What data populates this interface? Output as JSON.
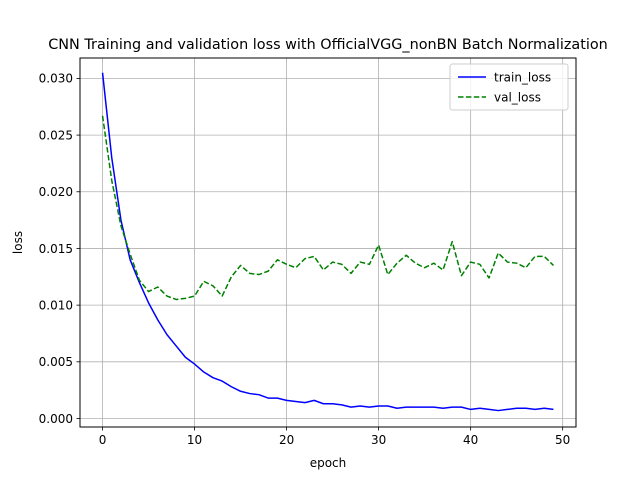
{
  "chart_data": {
    "type": "line",
    "title": "CNN Training and validation loss with OfficialVGG_nonBN Batch Normalization",
    "xlabel": "epoch",
    "ylabel": "loss",
    "xlim": [
      -2.45,
      51.45
    ],
    "ylim": [
      -0.00075,
      0.0318
    ],
    "xticks": [
      0,
      10,
      20,
      30,
      40,
      50
    ],
    "xtick_labels": [
      "0",
      "10",
      "20",
      "30",
      "40",
      "50"
    ],
    "yticks": [
      0.0,
      0.005,
      0.01,
      0.015,
      0.02,
      0.025,
      0.03
    ],
    "ytick_labels": [
      "0.000",
      "0.005",
      "0.010",
      "0.015",
      "0.020",
      "0.025",
      "0.030"
    ],
    "grid": true,
    "legend_position": "upper right",
    "x": [
      0,
      1,
      2,
      3,
      4,
      5,
      6,
      7,
      8,
      9,
      10,
      11,
      12,
      13,
      14,
      15,
      16,
      17,
      18,
      19,
      20,
      21,
      22,
      23,
      24,
      25,
      26,
      27,
      28,
      29,
      30,
      31,
      32,
      33,
      34,
      35,
      36,
      37,
      38,
      39,
      40,
      41,
      42,
      43,
      44,
      45,
      46,
      47,
      48,
      49
    ],
    "series": [
      {
        "name": "train_loss",
        "color": "#0000ff",
        "dash": "solid",
        "values": [
          0.0305,
          0.023,
          0.0175,
          0.014,
          0.012,
          0.0102,
          0.0087,
          0.0074,
          0.0064,
          0.0054,
          0.0048,
          0.0041,
          0.0036,
          0.0033,
          0.0028,
          0.0024,
          0.0022,
          0.0021,
          0.0018,
          0.0018,
          0.0016,
          0.0015,
          0.0014,
          0.0016,
          0.0013,
          0.0013,
          0.0012,
          0.001,
          0.0011,
          0.001,
          0.0011,
          0.0011,
          0.0009,
          0.001,
          0.001,
          0.001,
          0.001,
          0.0009,
          0.001,
          0.001,
          0.0008,
          0.0009,
          0.0008,
          0.0007,
          0.0008,
          0.0009,
          0.0009,
          0.0008,
          0.0009,
          0.0008
        ]
      },
      {
        "name": "val_loss",
        "color": "#008000",
        "dash": "dashed",
        "values": [
          0.0267,
          0.021,
          0.017,
          0.0145,
          0.0122,
          0.0112,
          0.0116,
          0.0108,
          0.0105,
          0.0106,
          0.0108,
          0.0121,
          0.0117,
          0.0108,
          0.0125,
          0.0135,
          0.0128,
          0.0127,
          0.013,
          0.014,
          0.0136,
          0.0133,
          0.0141,
          0.0143,
          0.0131,
          0.0138,
          0.0136,
          0.0128,
          0.0138,
          0.0136,
          0.0153,
          0.0127,
          0.0137,
          0.0144,
          0.0137,
          0.0133,
          0.0137,
          0.0131,
          0.0156,
          0.0126,
          0.0138,
          0.0136,
          0.0124,
          0.0146,
          0.0138,
          0.0137,
          0.0133,
          0.0143,
          0.0143,
          0.0135
        ]
      }
    ]
  }
}
